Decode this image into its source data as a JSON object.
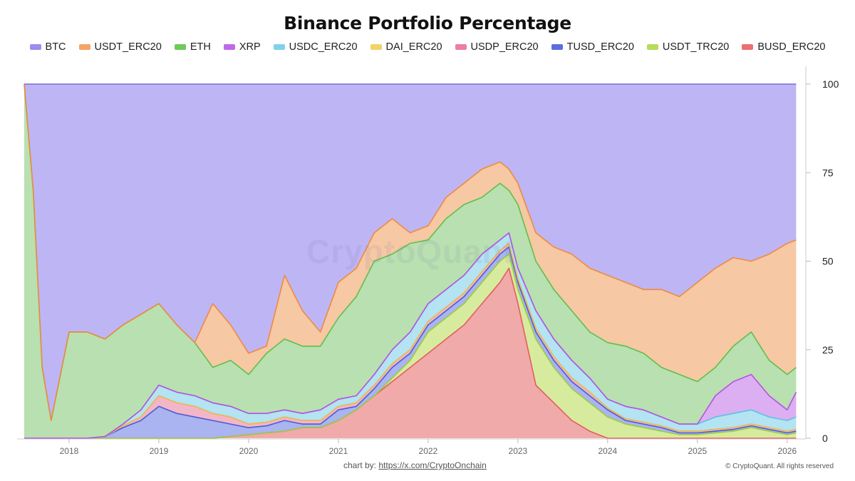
{
  "chart_data": {
    "type": "area",
    "stacked": true,
    "title": "Binance Portfolio Percentage",
    "watermark": "CryptoQuant",
    "credit_prefix": "chart by: ",
    "credit_link": "https://x.com/CryptoOnchain",
    "copyright": "© CryptoQuant. All rights reserved",
    "xlabel": "",
    "ylabel": "",
    "ylim": [
      0,
      100
    ],
    "y_ticks": [
      0,
      25,
      50,
      75,
      100
    ],
    "x_ticks": [
      "2018",
      "2019",
      "2020",
      "2021",
      "2022",
      "2023",
      "2024",
      "2025",
      "2026"
    ],
    "x_tick_years": [
      2018,
      2019,
      2020,
      2021,
      2022,
      2023,
      2024,
      2025,
      2026
    ],
    "x_range": [
      2017.5,
      2026.2
    ],
    "legend_position": "top-center",
    "x": [
      2017.5,
      2017.6,
      2017.7,
      2017.8,
      2018.0,
      2018.2,
      2018.4,
      2018.6,
      2018.8,
      2019.0,
      2019.2,
      2019.4,
      2019.6,
      2019.8,
      2020.0,
      2020.2,
      2020.4,
      2020.6,
      2020.8,
      2021.0,
      2021.2,
      2021.4,
      2021.6,
      2021.8,
      2022.0,
      2022.2,
      2022.4,
      2022.6,
      2022.8,
      2022.9,
      2023.0,
      2023.2,
      2023.4,
      2023.6,
      2023.8,
      2024.0,
      2024.2,
      2024.4,
      2024.6,
      2024.8,
      2025.0,
      2025.2,
      2025.4,
      2025.6,
      2025.8,
      2026.0,
      2026.1
    ],
    "cumulative_boundaries": [
      {
        "name": "BUSD_ERC20",
        "color": "#e35d5d",
        "fill": "#f0aaaa",
        "values": [
          0,
          0,
          0,
          0,
          0,
          0,
          0,
          0,
          0,
          0,
          0,
          0,
          0,
          0.5,
          1,
          1.5,
          2,
          3,
          3,
          5,
          8,
          12,
          16,
          20,
          24,
          28,
          32,
          38,
          44,
          48,
          38,
          15,
          10,
          5,
          2,
          0,
          0,
          0,
          0,
          0,
          0,
          0,
          0,
          0,
          0,
          0,
          0
        ]
      },
      {
        "name": "USDT_TRC20",
        "color": "#9bcd3a",
        "fill": "#d7eb9e",
        "values": [
          0,
          0,
          0,
          0,
          0,
          0,
          0,
          0,
          0,
          0,
          0,
          0,
          0,
          0.5,
          1,
          1.5,
          2,
          3,
          3,
          5,
          8,
          12,
          17,
          22,
          30,
          34,
          38,
          44,
          50,
          52,
          42,
          28,
          20,
          14,
          10,
          6,
          4,
          3,
          2,
          1,
          1,
          1.5,
          2,
          3,
          2,
          1,
          1.5
        ]
      },
      {
        "name": "TUSD_ERC20",
        "color": "#4a5cd4",
        "fill": "#a9b4f0",
        "values": [
          0,
          0,
          0,
          0,
          0,
          0,
          0.5,
          3,
          5,
          9,
          7,
          6,
          5,
          4,
          3,
          3.5,
          5,
          4,
          4,
          8,
          9,
          14,
          20,
          24,
          32,
          36,
          40,
          46,
          52,
          54,
          44,
          30,
          22,
          16,
          12,
          8,
          5,
          4,
          3,
          1.5,
          1.5,
          2,
          2.5,
          3.5,
          2.5,
          1.5,
          2
        ]
      },
      {
        "name": "USDP_ERC20",
        "color": "#e0608a",
        "fill": "#f3b6c9",
        "values": [
          0,
          0,
          0,
          0,
          0,
          0,
          0.5,
          3.5,
          6,
          12,
          10,
          9,
          7,
          6,
          4,
          4.5,
          6,
          5,
          5,
          9,
          10,
          15,
          21,
          25,
          33,
          37,
          41,
          47,
          53,
          55,
          45,
          31,
          23,
          17,
          13,
          8.5,
          5.5,
          4.5,
          3.5,
          2,
          2,
          2.5,
          3,
          4,
          3,
          2,
          2.5
        ]
      },
      {
        "name": "DAI_ERC20",
        "color": "#e8c24a",
        "fill": "#f5e3a6",
        "values": [
          0,
          0,
          0,
          0,
          0,
          0,
          0.5,
          3.5,
          6,
          12,
          10,
          9,
          7,
          6,
          4,
          4.5,
          6,
          5,
          5,
          9,
          10,
          15,
          21,
          25,
          33,
          37,
          41,
          47,
          53,
          55,
          45,
          31,
          23,
          17,
          13,
          8.5,
          5.5,
          4.5,
          3.5,
          2,
          2,
          2.5,
          3,
          4,
          3,
          2,
          2.5
        ]
      },
      {
        "name": "USDC_ERC20",
        "color": "#5ec2e0",
        "fill": "#b4e3f1",
        "values": [
          0,
          0,
          0,
          0,
          0,
          0,
          0.5,
          4,
          8,
          15,
          13,
          12,
          10,
          9,
          7,
          7,
          8,
          7,
          8,
          11,
          12,
          18,
          25,
          30,
          38,
          42,
          46,
          52,
          56,
          58,
          48,
          36,
          28,
          22,
          17,
          11,
          9,
          8,
          6,
          4,
          4,
          6,
          7,
          8,
          6,
          5,
          6
        ]
      },
      {
        "name": "XRP",
        "color": "#b553e0",
        "fill": "#dcaef2",
        "values": [
          0,
          0,
          0,
          0,
          0,
          0,
          0.5,
          4,
          8,
          15,
          13,
          12,
          10,
          9,
          7,
          7,
          8,
          7,
          8,
          11,
          12,
          18,
          25,
          30,
          38,
          42,
          46,
          52,
          56,
          58,
          48,
          36,
          28,
          22,
          17,
          11,
          9,
          8,
          6,
          4,
          4,
          12,
          16,
          18,
          12,
          8,
          13
        ]
      },
      {
        "name": "ETH",
        "color": "#5fbf4a",
        "fill": "#b9e0b0",
        "values": [
          100,
          70,
          20,
          5,
          30,
          30,
          28,
          32,
          35,
          38,
          32,
          27,
          20,
          22,
          18,
          24,
          28,
          26,
          26,
          34,
          40,
          50,
          52,
          55,
          56,
          62,
          66,
          68,
          72,
          70,
          66,
          50,
          42,
          36,
          30,
          27,
          26,
          24,
          20,
          18,
          16,
          20,
          26,
          30,
          22,
          18,
          20
        ]
      },
      {
        "name": "USDT_ERC20",
        "color": "#ef8a3e",
        "fill": "#f6c8a4",
        "values": [
          100,
          70,
          20,
          5,
          30,
          30,
          28,
          32,
          35,
          38,
          32,
          27,
          38,
          32,
          24,
          26,
          46,
          36,
          30,
          44,
          48,
          58,
          62,
          58,
          60,
          68,
          72,
          76,
          78,
          76,
          72,
          58,
          54,
          52,
          48,
          46,
          44,
          42,
          42,
          40,
          44,
          48,
          51,
          50,
          52,
          55,
          56
        ]
      },
      {
        "name": "BTC",
        "color": "#7b6cd9",
        "fill": "#beb5f5",
        "values": [
          100,
          100,
          100,
          100,
          100,
          100,
          100,
          100,
          100,
          100,
          100,
          100,
          100,
          100,
          100,
          100,
          100,
          100,
          100,
          100,
          100,
          100,
          100,
          100,
          100,
          100,
          100,
          100,
          100,
          100,
          100,
          100,
          100,
          100,
          100,
          100,
          100,
          100,
          100,
          100,
          100,
          100,
          100,
          100,
          100,
          100,
          100
        ]
      }
    ],
    "legend": [
      {
        "label": "BTC",
        "color": "#9b8cf0"
      },
      {
        "label": "USDT_ERC20",
        "color": "#f4a468"
      },
      {
        "label": "ETH",
        "color": "#6ecb5a"
      },
      {
        "label": "XRP",
        "color": "#c06ae8"
      },
      {
        "label": "USDC_ERC20",
        "color": "#7fd2ea"
      },
      {
        "label": "DAI_ERC20",
        "color": "#f0d36a"
      },
      {
        "label": "USDP_ERC20",
        "color": "#ec7ea4"
      },
      {
        "label": "TUSD_ERC20",
        "color": "#5b6ee0"
      },
      {
        "label": "USDT_TRC20",
        "color": "#b6dc5a"
      },
      {
        "label": "BUSD_ERC20",
        "color": "#ec7070"
      }
    ]
  }
}
